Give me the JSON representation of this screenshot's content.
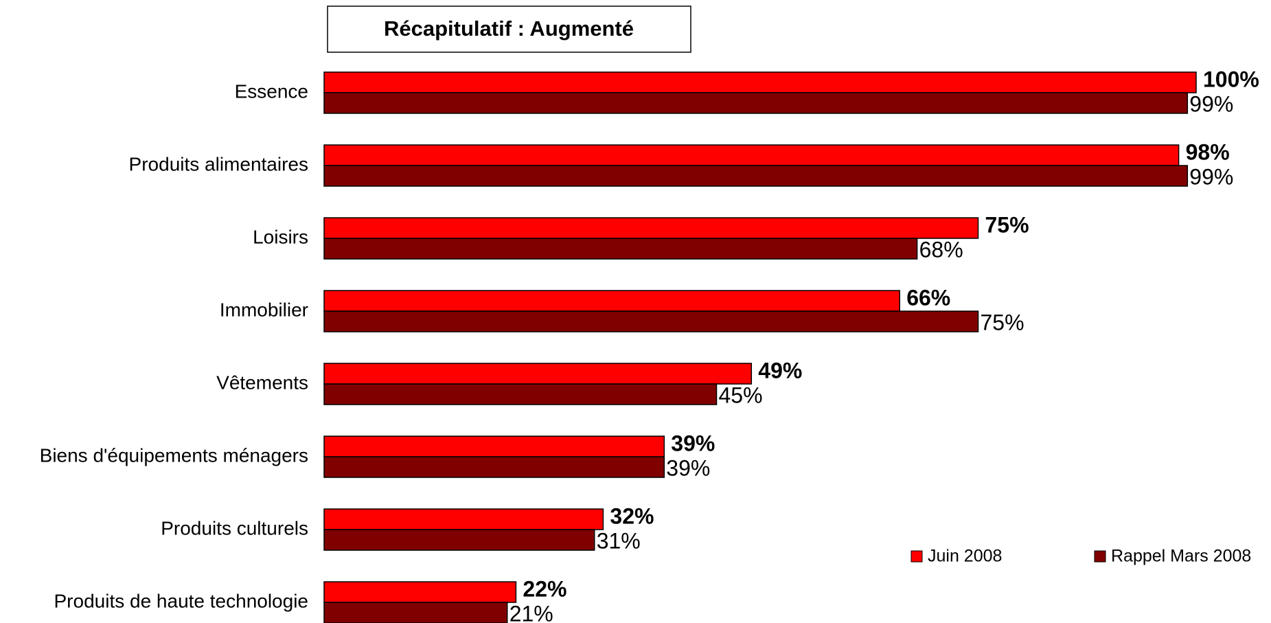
{
  "chart_data": {
    "type": "hbar",
    "title": "Récapitulatif : Augmenté",
    "categories": [
      "Essence",
      "Produits alimentaires",
      "Loisirs",
      "Immobilier",
      "Vêtements",
      "Biens d'équipements ménagers",
      "Produits culturels",
      "Produits de haute technologie"
    ],
    "series": [
      {
        "name": "Juin 2008",
        "color": "#ff0000",
        "values": [
          100,
          98,
          75,
          66,
          49,
          39,
          32,
          22
        ],
        "value_labels": [
          "100%",
          "98%",
          "75%",
          "66%",
          "49%",
          "39%",
          "32%",
          "22%"
        ]
      },
      {
        "name": "Rappel Mars 2008",
        "color": "#800000",
        "values": [
          99,
          99,
          68,
          75,
          45,
          39,
          31,
          21
        ],
        "value_labels": [
          "99%",
          "99%",
          "68%",
          "75%",
          "45%",
          "39%",
          "31%",
          "21%"
        ]
      }
    ],
    "xlim": [
      0,
      100
    ],
    "legend": "lower right"
  }
}
